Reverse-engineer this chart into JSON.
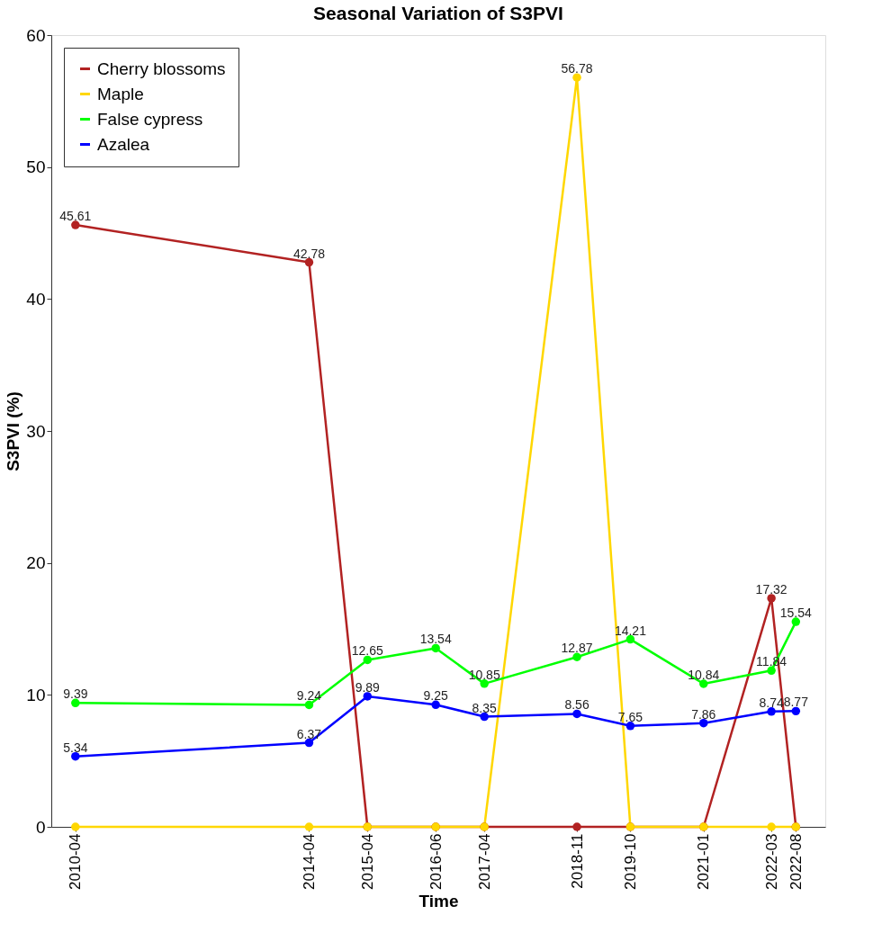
{
  "chart_data": {
    "type": "line",
    "title": "Seasonal Variation of S3PVI",
    "xlabel": "Time",
    "ylabel": "S3PVI (%)",
    "x": [
      "2010-04",
      "2014-04",
      "2015-04",
      "2016-06",
      "2017-04",
      "2018-11",
      "2019-10",
      "2021-01",
      "2022-03",
      "2022-08"
    ],
    "series": [
      {
        "name": "Cherry blossoms",
        "color": "#b22222",
        "values": [
          45.61,
          42.78,
          0,
          0,
          0,
          0,
          0,
          0,
          17.32,
          0
        ],
        "value_labels": [
          "45.61",
          "42.78",
          null,
          null,
          null,
          null,
          null,
          null,
          "17.32",
          null
        ]
      },
      {
        "name": "Maple",
        "color": "#ffd700",
        "values": [
          0,
          0,
          0,
          0,
          0,
          56.78,
          0,
          0,
          0,
          0
        ],
        "value_labels": [
          null,
          null,
          null,
          null,
          null,
          "56.78",
          null,
          null,
          null,
          null
        ]
      },
      {
        "name": "False cypress",
        "color": "#00ff00",
        "values": [
          9.39,
          9.24,
          12.65,
          13.54,
          10.85,
          12.87,
          14.21,
          10.84,
          11.84,
          15.54
        ],
        "value_labels": [
          "9.39",
          "9.24",
          "12.65",
          "13.54",
          "10.85",
          "12.87",
          "14.21",
          "10.84",
          "11.84",
          "15.54"
        ]
      },
      {
        "name": "Azalea",
        "color": "#0000ff",
        "values": [
          5.34,
          6.37,
          9.89,
          9.25,
          8.35,
          8.56,
          7.65,
          7.86,
          8.74,
          8.77
        ],
        "value_labels": [
          "5.34",
          "6.37",
          "9.89",
          "9.25",
          "8.35",
          "8.56",
          "7.65",
          "7.86",
          "8.74",
          "8.77"
        ]
      }
    ],
    "xlim": [
      "2009-11",
      "2023-02"
    ],
    "xticks": [
      "2010-04",
      "2014-04",
      "2015-04",
      "2016-06",
      "2017-04",
      "2018-11",
      "2019-10",
      "2021-01",
      "2022-03",
      "2022-08"
    ],
    "ylim": [
      0,
      60
    ],
    "yticks": [
      0,
      10,
      20,
      30,
      40,
      50,
      60
    ],
    "grid": false,
    "legend": "top left",
    "marker": "circle",
    "line_style": "solid"
  }
}
